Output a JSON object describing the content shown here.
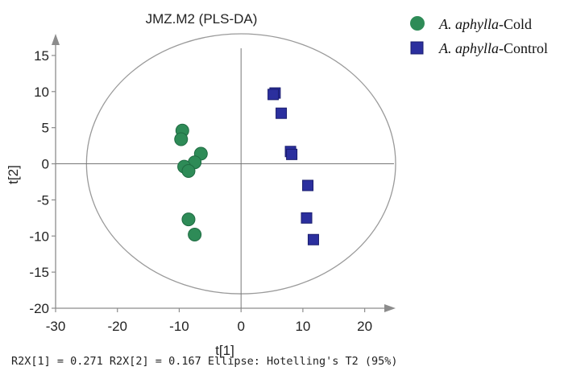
{
  "chart_data": {
    "type": "scatter",
    "title": "JMZ.M2 (PLS-DA)",
    "xlabel": "t[1]",
    "ylabel": "t[2]",
    "xlim": [
      -30,
      25
    ],
    "ylim": [
      -20,
      18
    ],
    "x_ticks": [
      -30,
      -20,
      -10,
      0,
      10,
      20
    ],
    "y_ticks": [
      -20,
      -15,
      -10,
      -5,
      0,
      5,
      10,
      15
    ],
    "x_tick_labels": [
      "-30",
      "-20",
      "-10",
      "0",
      "10",
      "20"
    ],
    "y_tick_labels": [
      "-20",
      "-15",
      "-10",
      "-5",
      "0",
      "5",
      "10",
      "15"
    ],
    "ellipse": {
      "center": [
        0,
        0
      ],
      "semi_axes": [
        25,
        18
      ],
      "label": "Hotelling's T2 (95%)"
    },
    "legend_position": "top-right",
    "series": [
      {
        "name_italic": "A. aphylla",
        "name_rest": "-Cold",
        "marker": "circle",
        "color": "#2E8B57",
        "points": [
          [
            -9.5,
            4.6
          ],
          [
            -9.7,
            3.4
          ],
          [
            -6.5,
            1.4
          ],
          [
            -7.5,
            0.2
          ],
          [
            -9.2,
            -0.4
          ],
          [
            -8.5,
            -1.0
          ],
          [
            -8.5,
            -7.7
          ],
          [
            -7.5,
            -9.8
          ]
        ]
      },
      {
        "name_italic": "A. aphylla",
        "name_rest": "-Control",
        "marker": "square",
        "color": "#2B2F9E",
        "points": [
          [
            5.5,
            9.8
          ],
          [
            5.2,
            9.6
          ],
          [
            6.5,
            7.0
          ],
          [
            8.0,
            1.7
          ],
          [
            8.2,
            1.3
          ],
          [
            10.8,
            -3.0
          ],
          [
            10.6,
            -7.5
          ],
          [
            11.7,
            -10.5
          ]
        ]
      }
    ],
    "footnote": "R2X[1] = 0.271 R2X[2] = 0.167 Ellipse: Hotelling's T2 (95%)"
  }
}
